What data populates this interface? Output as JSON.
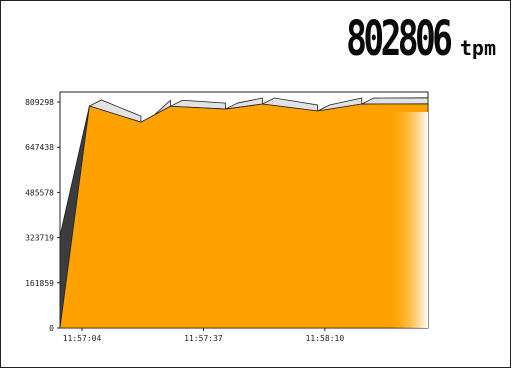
{
  "readout": {
    "value": "802806",
    "unit": "tpm"
  },
  "colors": {
    "fill": "#ffa200",
    "shade": "#e2e2e2",
    "side": "#3c3c3c",
    "axis": "#222222"
  },
  "chart_data": {
    "type": "area",
    "title": "",
    "xlabel": "",
    "ylabel": "",
    "grid": false,
    "ylim": [
      0,
      809298
    ],
    "y_ticks": [
      0,
      161859,
      323719,
      485578,
      647438,
      809298
    ],
    "x_tick_labels": [
      "11:57:04",
      "11:57:37",
      "11:58:10"
    ],
    "x_range": [
      0,
      100
    ],
    "x_ticks": [
      0,
      33,
      66
    ],
    "x": [
      0,
      8,
      22,
      30,
      45,
      55,
      70,
      82,
      100
    ],
    "values": [
      0,
      795000,
      737000,
      794000,
      784000,
      802000,
      777000,
      802000,
      802806
    ],
    "start_value": 330000
  }
}
